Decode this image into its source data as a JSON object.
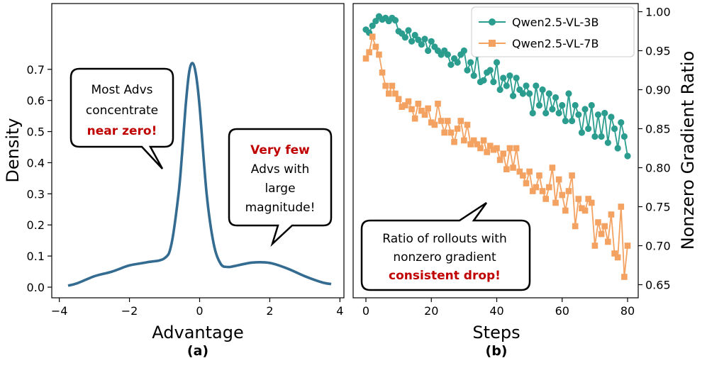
{
  "panels": [
    {
      "label": "(a)",
      "xlabel": "Advantage",
      "ylabel": "Density",
      "xticks": [
        "−4",
        "−2",
        "0",
        "2",
        "4"
      ],
      "yticks": [
        "0.0",
        "0.1",
        "0.2",
        "0.3",
        "0.4",
        "0.5",
        "0.6",
        "0.7"
      ],
      "callouts": [
        {
          "lines": [
            {
              "parts": [
                {
                  "text": "Most Advs"
                }
              ]
            },
            {
              "parts": [
                {
                  "text": "concentrate"
                }
              ]
            },
            {
              "parts": [
                {
                  "text": "near zero!",
                  "emph": true
                }
              ]
            }
          ]
        },
        {
          "lines": [
            {
              "parts": [
                {
                  "text": "Very few",
                  "emph": true
                }
              ]
            },
            {
              "parts": [
                {
                  "text": "Advs with"
                }
              ]
            },
            {
              "parts": [
                {
                  "text": "large"
                }
              ]
            },
            {
              "parts": [
                {
                  "text": "magnitude!"
                }
              ]
            }
          ]
        }
      ]
    },
    {
      "label": "(b)",
      "xlabel": "Steps",
      "ylabel": "Nonzero Gradient Ratio",
      "xticks": [
        "0",
        "20",
        "40",
        "60",
        "80"
      ],
      "yticks": [
        "0.65",
        "0.70",
        "0.75",
        "0.80",
        "0.85",
        "0.90",
        "0.95",
        "1.00"
      ],
      "legend": [
        "Qwen2.5-VL-3B",
        "Qwen2.5-VL-7B"
      ],
      "callouts": [
        {
          "lines": [
            {
              "parts": [
                {
                  "text": "Ratio of rollouts with"
                }
              ]
            },
            {
              "parts": [
                {
                  "text": "nonzero gradient"
                }
              ]
            },
            {
              "parts": [
                {
                  "text": "consistent drop!",
                  "emph": true
                }
              ]
            }
          ]
        }
      ]
    }
  ],
  "colors": {
    "density": "#336b91",
    "series_3b": "#2a9d8f",
    "series_7b": "#f4a261",
    "emph": "#c00000"
  },
  "chart_data": [
    {
      "type": "line",
      "title": "",
      "xlabel": "Advantage",
      "ylabel": "Density",
      "xlim": [
        -4,
        4
      ],
      "ylim": [
        0,
        0.75
      ],
      "series": [
        {
          "x": [
            -3.75,
            -3.5,
            -3.0,
            -2.5,
            -2.0,
            -1.5,
            -1.0,
            -0.8,
            -0.6,
            -0.5,
            -0.4,
            -0.3,
            -0.2,
            -0.1,
            0.0,
            0.2,
            0.4,
            0.6,
            0.8,
            1.0,
            1.5,
            2.0,
            2.5,
            3.0,
            3.5,
            3.75
          ],
          "y": [
            0.005,
            0.012,
            0.035,
            0.05,
            0.07,
            0.08,
            0.093,
            0.14,
            0.3,
            0.43,
            0.58,
            0.69,
            0.72,
            0.68,
            0.58,
            0.3,
            0.14,
            0.075,
            0.065,
            0.068,
            0.079,
            0.078,
            0.06,
            0.035,
            0.015,
            0.01
          ]
        }
      ]
    },
    {
      "type": "line",
      "title": "",
      "xlabel": "Steps",
      "ylabel": "Nonzero Gradient Ratio",
      "xlim": [
        -2,
        82
      ],
      "ylim": [
        0.64,
        1.01
      ],
      "legend_position": "top-right",
      "series": [
        {
          "name": "Qwen2.5-VL-3B",
          "marker": "circle",
          "x": [
            0,
            1,
            2,
            3,
            4,
            5,
            6,
            7,
            8,
            9,
            10,
            11,
            12,
            13,
            14,
            15,
            16,
            17,
            18,
            19,
            20,
            21,
            22,
            23,
            24,
            25,
            26,
            27,
            28,
            29,
            30,
            31,
            32,
            33,
            34,
            35,
            36,
            37,
            38,
            39,
            40,
            41,
            42,
            43,
            44,
            45,
            46,
            47,
            48,
            49,
            50,
            51,
            52,
            53,
            54,
            55,
            56,
            57,
            58,
            59,
            60,
            61,
            62,
            63,
            64,
            65,
            66,
            67,
            68,
            69,
            70,
            71,
            72,
            73,
            74,
            75,
            76,
            77,
            78,
            79,
            80
          ],
          "y": [
            0.977,
            0.973,
            0.982,
            0.988,
            0.994,
            0.99,
            0.992,
            0.988,
            0.992,
            0.989,
            0.975,
            0.972,
            0.967,
            0.976,
            0.962,
            0.97,
            0.964,
            0.958,
            0.965,
            0.95,
            0.962,
            0.955,
            0.95,
            0.945,
            0.95,
            0.945,
            0.932,
            0.94,
            0.935,
            0.945,
            0.95,
            0.925,
            0.935,
            0.918,
            0.945,
            0.91,
            0.912,
            0.922,
            0.925,
            0.91,
            0.935,
            0.9,
            0.915,
            0.905,
            0.918,
            0.892,
            0.915,
            0.9,
            0.895,
            0.905,
            0.895,
            0.87,
            0.905,
            0.88,
            0.9,
            0.87,
            0.895,
            0.875,
            0.89,
            0.87,
            0.88,
            0.86,
            0.895,
            0.86,
            0.88,
            0.868,
            0.845,
            0.875,
            0.85,
            0.88,
            0.84,
            0.868,
            0.84,
            0.87,
            0.832,
            0.865,
            0.85,
            0.825,
            0.858,
            0.84,
            0.815
          ]
        },
        {
          "name": "Qwen2.5-VL-7B",
          "marker": "square",
          "x": [
            0,
            1,
            2,
            3,
            4,
            5,
            6,
            7,
            8,
            9,
            10,
            11,
            12,
            13,
            14,
            15,
            16,
            17,
            18,
            19,
            20,
            21,
            22,
            23,
            24,
            25,
            26,
            27,
            28,
            29,
            30,
            31,
            32,
            33,
            34,
            35,
            36,
            37,
            38,
            39,
            40,
            41,
            42,
            43,
            44,
            45,
            46,
            47,
            48,
            49,
            50,
            51,
            52,
            53,
            54,
            55,
            56,
            57,
            58,
            59,
            60,
            61,
            62,
            63,
            64,
            65,
            66,
            67,
            68,
            69,
            70,
            71,
            72,
            73,
            74,
            75,
            76,
            77,
            78,
            79,
            80
          ],
          "y": [
            0.94,
            0.948,
            0.968,
            0.955,
            0.945,
            0.922,
            0.905,
            0.895,
            0.905,
            0.895,
            0.888,
            0.878,
            0.88,
            0.885,
            0.875,
            0.863,
            0.882,
            0.873,
            0.868,
            0.876,
            0.858,
            0.855,
            0.882,
            0.86,
            0.845,
            0.86,
            0.845,
            0.833,
            0.85,
            0.86,
            0.835,
            0.855,
            0.83,
            0.835,
            0.83,
            0.825,
            0.835,
            0.82,
            0.828,
            0.823,
            0.825,
            0.81,
            0.818,
            0.798,
            0.825,
            0.8,
            0.825,
            0.795,
            0.79,
            0.78,
            0.795,
            0.77,
            0.775,
            0.79,
            0.77,
            0.76,
            0.775,
            0.8,
            0.755,
            0.785,
            0.765,
            0.745,
            0.77,
            0.79,
            0.725,
            0.76,
            0.748,
            0.745,
            0.76,
            0.755,
            0.7,
            0.73,
            0.715,
            0.725,
            0.705,
            0.74,
            0.69,
            0.685,
            0.75,
            0.66,
            0.7
          ]
        }
      ]
    }
  ]
}
